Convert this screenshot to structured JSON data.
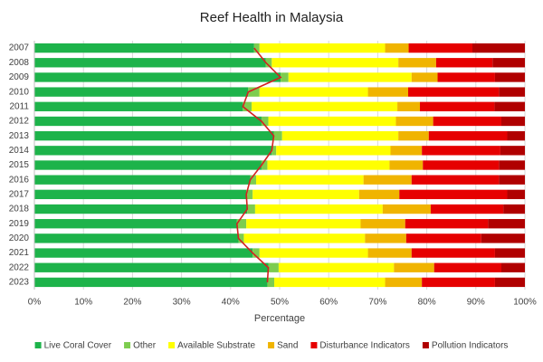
{
  "chart_data": {
    "type": "stacked_horizontal_bar",
    "title": "Reef Health in Malaysia",
    "x_label": "Percentage",
    "categories": [
      "2007",
      "2008",
      "2009",
      "2010",
      "2011",
      "2012",
      "2013",
      "2014",
      "2015",
      "2016",
      "2017",
      "2018",
      "2019",
      "2020",
      "2021",
      "2022",
      "2023"
    ],
    "series": [
      {
        "name": "Live Coral Cover",
        "color": "#1db34a",
        "values": [
          44.8,
          47.2,
          50.2,
          43.6,
          42.5,
          46.3,
          48.8,
          48.4,
          46.3,
          44.0,
          43.2,
          43.4,
          41.3,
          41.6,
          44.5,
          47.7,
          47.5
        ]
      },
      {
        "name": "Other",
        "color": "#7dcc4f",
        "values": [
          1.1,
          1.2,
          1.6,
          2.3,
          1.8,
          1.4,
          1.7,
          0.9,
          1.2,
          1.2,
          1.3,
          1.6,
          1.9,
          1.1,
          1.4,
          2.1,
          1.4
        ]
      },
      {
        "name": "Available Substrate",
        "color": "#ffff00",
        "values": [
          25.6,
          25.8,
          25.1,
          22.1,
          29.7,
          26.0,
          23.7,
          23.3,
          24.9,
          21.9,
          21.7,
          26.0,
          23.3,
          24.7,
          22.1,
          23.5,
          22.6
        ]
      },
      {
        "name": "Sand",
        "color": "#f0b400",
        "values": [
          4.8,
          7.7,
          5.3,
          8.2,
          4.6,
          7.6,
          6.2,
          6.4,
          6.8,
          9.8,
          8.2,
          9.8,
          9.1,
          8.4,
          8.9,
          8.2,
          7.5
        ]
      },
      {
        "name": "Disturbance Indicators",
        "color": "#e60000",
        "values": [
          13.0,
          11.5,
          11.7,
          18.5,
          15.2,
          13.9,
          16.0,
          16.0,
          15.5,
          17.8,
          22.0,
          14.8,
          16.9,
          15.3,
          17.0,
          13.7,
          14.9
        ]
      },
      {
        "name": "Pollution Indicators",
        "color": "#b00000",
        "values": [
          10.7,
          6.6,
          6.1,
          5.3,
          6.2,
          4.8,
          3.6,
          5.0,
          5.3,
          5.3,
          3.6,
          4.4,
          7.5,
          8.9,
          6.1,
          4.8,
          6.1
        ]
      }
    ],
    "overlay_line_color": "#d42020",
    "xlim": [
      0,
      100
    ],
    "xticks": [
      {
        "value": 0,
        "label": "0%"
      },
      {
        "value": 10,
        "label": "10%"
      },
      {
        "value": 20,
        "label": "20%"
      },
      {
        "value": 30,
        "label": "30%"
      },
      {
        "value": 40,
        "label": "40%"
      },
      {
        "value": 50,
        "label": "50%"
      },
      {
        "value": 60,
        "label": "60%"
      },
      {
        "value": 70,
        "label": "70%"
      },
      {
        "value": 80,
        "label": "80%"
      },
      {
        "value": 90,
        "label": "90%"
      },
      {
        "value": 100,
        "label": "100%"
      }
    ],
    "grid": true,
    "legend": "bottom"
  }
}
